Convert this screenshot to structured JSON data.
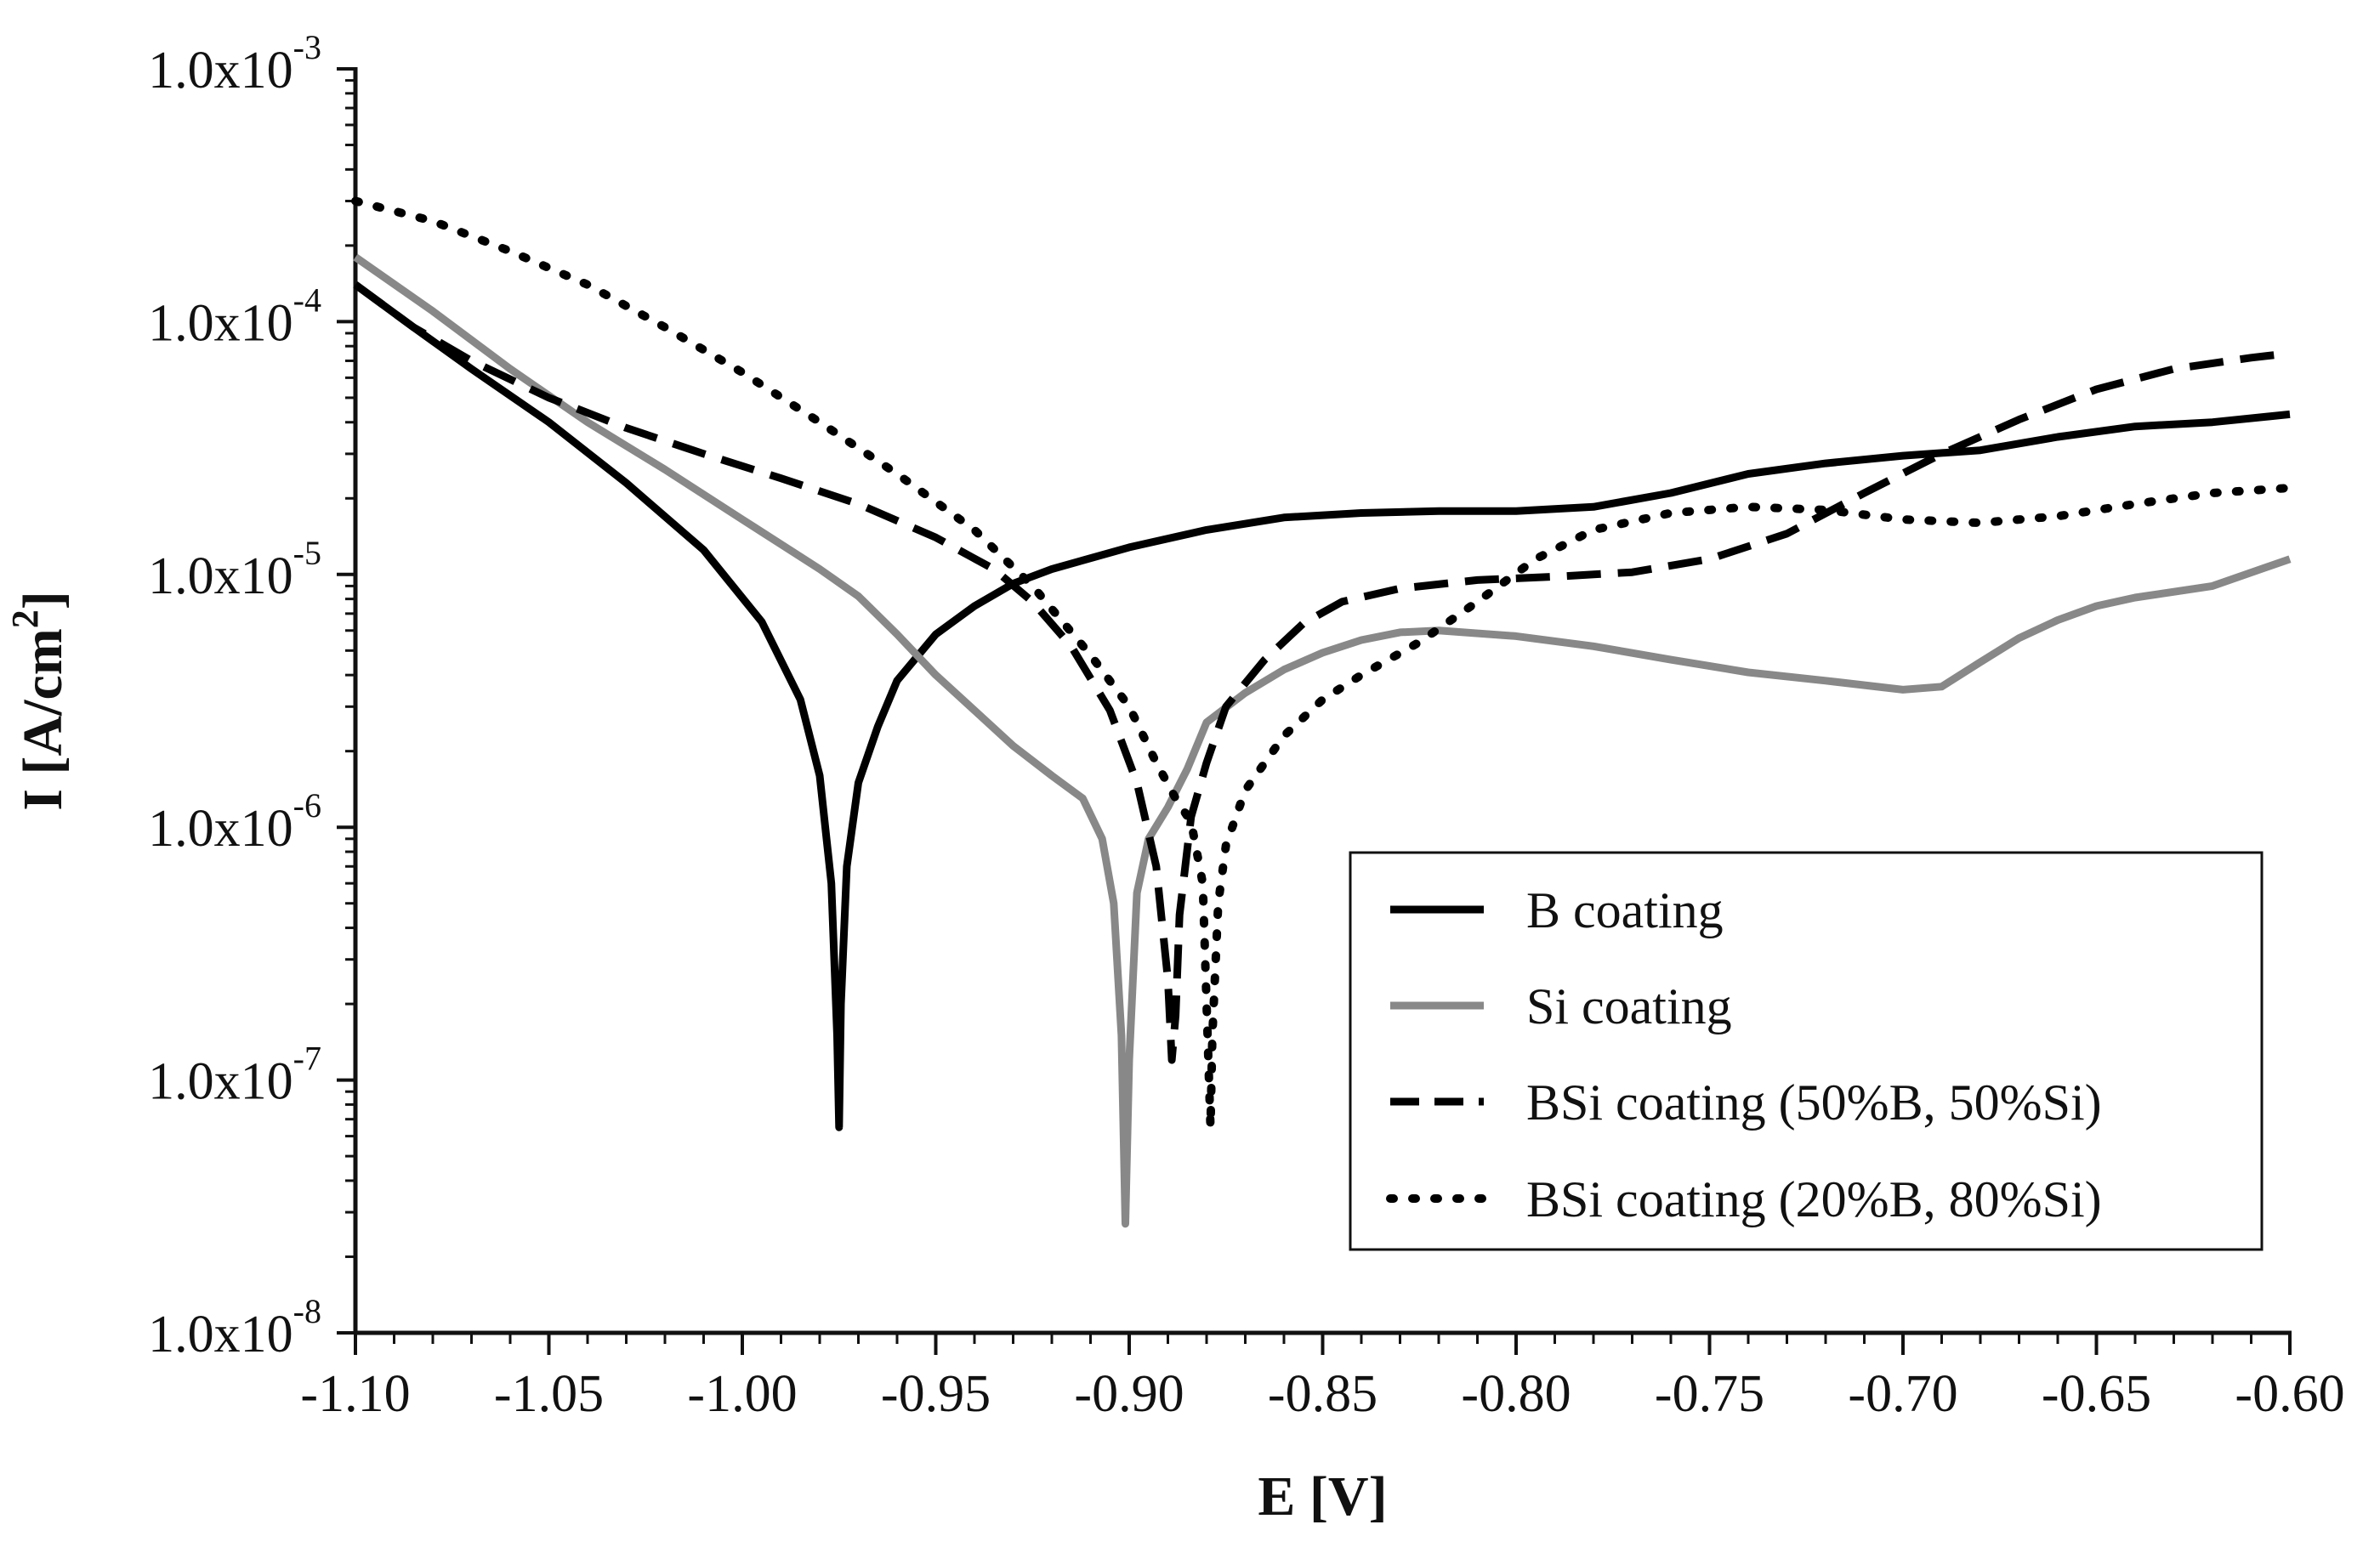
{
  "chart_data": {
    "type": "line",
    "title": "",
    "xlabel": "E [V]",
    "ylabel_main": "I [A/cm",
    "ylabel_sup": "2",
    "ylabel_close": "]",
    "xlim": [
      -1.1,
      -0.6
    ],
    "ylim": [
      1e-08,
      0.001
    ],
    "yscale": "log",
    "legend_position": "lower-right",
    "xtick_labels": [
      "-1.10",
      "-1.05",
      "-1.00",
      "-0.95",
      "-0.90",
      "-0.85",
      "-0.80",
      "-0.75",
      "-0.70",
      "-0.65",
      "-0.60"
    ],
    "ytick_labels": [
      {
        "base": "1.0x10",
        "exp": "-8",
        "value": 1e-08
      },
      {
        "base": "1.0x10",
        "exp": "-7",
        "value": 1e-07
      },
      {
        "base": "1.0x10",
        "exp": "-6",
        "value": 1e-06
      },
      {
        "base": "1.0x10",
        "exp": "-5",
        "value": 1e-05
      },
      {
        "base": "1.0x10",
        "exp": "-4",
        "value": 0.0001
      },
      {
        "base": "1.0x10",
        "exp": "-3",
        "value": 0.001
      }
    ],
    "series": [
      {
        "name": "B coating",
        "color": "#000000",
        "dash": "solid",
        "points": [
          [
            -1.1,
            0.00014
          ],
          [
            -1.085,
            9.5e-05
          ],
          [
            -1.07,
            6.5e-05
          ],
          [
            -1.05,
            4e-05
          ],
          [
            -1.03,
            2.3e-05
          ],
          [
            -1.01,
            1.25e-05
          ],
          [
            -0.995,
            6.5e-06
          ],
          [
            -0.985,
            3.2e-06
          ],
          [
            -0.98,
            1.6e-06
          ],
          [
            -0.977,
            6e-07
          ],
          [
            -0.9755,
            1.5e-07
          ],
          [
            -0.975,
            6.5e-08
          ],
          [
            -0.9745,
            2e-07
          ],
          [
            -0.973,
            7e-07
          ],
          [
            -0.97,
            1.5e-06
          ],
          [
            -0.965,
            2.5e-06
          ],
          [
            -0.96,
            3.8e-06
          ],
          [
            -0.95,
            5.8e-06
          ],
          [
            -0.94,
            7.5e-06
          ],
          [
            -0.93,
            9.2e-06
          ],
          [
            -0.92,
            1.05e-05
          ],
          [
            -0.9,
            1.28e-05
          ],
          [
            -0.88,
            1.5e-05
          ],
          [
            -0.86,
            1.68e-05
          ],
          [
            -0.84,
            1.75e-05
          ],
          [
            -0.82,
            1.78e-05
          ],
          [
            -0.8,
            1.78e-05
          ],
          [
            -0.78,
            1.85e-05
          ],
          [
            -0.76,
            2.1e-05
          ],
          [
            -0.74,
            2.5e-05
          ],
          [
            -0.72,
            2.75e-05
          ],
          [
            -0.7,
            2.95e-05
          ],
          [
            -0.68,
            3.1e-05
          ],
          [
            -0.66,
            3.5e-05
          ],
          [
            -0.64,
            3.85e-05
          ],
          [
            -0.62,
            4e-05
          ],
          [
            -0.6,
            4.3e-05
          ]
        ]
      },
      {
        "name": "Si coating",
        "color": "#888888",
        "dash": "solid",
        "points": [
          [
            -1.1,
            0.00018
          ],
          [
            -1.08,
            0.00011
          ],
          [
            -1.06,
            6.5e-05
          ],
          [
            -1.04,
            4e-05
          ],
          [
            -1.02,
            2.6e-05
          ],
          [
            -1.0,
            1.65e-05
          ],
          [
            -0.98,
            1.05e-05
          ],
          [
            -0.97,
            8.2e-06
          ],
          [
            -0.96,
            5.8e-06
          ],
          [
            -0.95,
            4e-06
          ],
          [
            -0.94,
            2.9e-06
          ],
          [
            -0.93,
            2.1e-06
          ],
          [
            -0.92,
            1.6e-06
          ],
          [
            -0.912,
            1.3e-06
          ],
          [
            -0.907,
            9e-07
          ],
          [
            -0.904,
            5e-07
          ],
          [
            -0.902,
            1.5e-07
          ],
          [
            -0.901,
            2.7e-08
          ],
          [
            -0.9,
            1.2e-07
          ],
          [
            -0.898,
            5.5e-07
          ],
          [
            -0.895,
            9e-07
          ],
          [
            -0.89,
            1.2e-06
          ],
          [
            -0.885,
            1.7e-06
          ],
          [
            -0.88,
            2.6e-06
          ],
          [
            -0.87,
            3.4e-06
          ],
          [
            -0.86,
            4.2e-06
          ],
          [
            -0.85,
            4.9e-06
          ],
          [
            -0.84,
            5.5e-06
          ],
          [
            -0.83,
            5.9e-06
          ],
          [
            -0.82,
            6e-06
          ],
          [
            -0.8,
            5.7e-06
          ],
          [
            -0.78,
            5.2e-06
          ],
          [
            -0.76,
            4.6e-06
          ],
          [
            -0.74,
            4.1e-06
          ],
          [
            -0.72,
            3.8e-06
          ],
          [
            -0.7,
            3.5e-06
          ],
          [
            -0.69,
            3.6e-06
          ],
          [
            -0.68,
            4.5e-06
          ],
          [
            -0.67,
            5.6e-06
          ],
          [
            -0.66,
            6.6e-06
          ],
          [
            -0.65,
            7.5e-06
          ],
          [
            -0.64,
            8.1e-06
          ],
          [
            -0.62,
            9e-06
          ],
          [
            -0.6,
            1.15e-05
          ]
        ]
      },
      {
        "name": "BSi coating (50%B, 50%Si)",
        "color": "#000000",
        "dash": "dashed",
        "points": [
          [
            -1.1,
            0.00014
          ],
          [
            -1.085,
            9.5e-05
          ],
          [
            -1.07,
            7e-05
          ],
          [
            -1.05,
            5e-05
          ],
          [
            -1.03,
            3.8e-05
          ],
          [
            -1.01,
            3e-05
          ],
          [
            -0.99,
            2.4e-05
          ],
          [
            -0.97,
            1.9e-05
          ],
          [
            -0.95,
            1.4e-05
          ],
          [
            -0.935,
            1.05e-05
          ],
          [
            -0.925,
            7.8e-06
          ],
          [
            -0.915,
            5.2e-06
          ],
          [
            -0.905,
            2.9e-06
          ],
          [
            -0.898,
            1.5e-06
          ],
          [
            -0.893,
            7e-07
          ],
          [
            -0.89,
            2.5e-07
          ],
          [
            -0.889,
            1.2e-07
          ],
          [
            -0.888,
            1.8e-07
          ],
          [
            -0.887,
            4.5e-07
          ],
          [
            -0.884,
            1.1e-06
          ],
          [
            -0.88,
            1.8e-06
          ],
          [
            -0.875,
            3e-06
          ],
          [
            -0.865,
            4.6e-06
          ],
          [
            -0.855,
            6.4e-06
          ],
          [
            -0.845,
            7.8e-06
          ],
          [
            -0.83,
            8.8e-06
          ],
          [
            -0.81,
            9.5e-06
          ],
          [
            -0.79,
            9.8e-06
          ],
          [
            -0.77,
            1.02e-05
          ],
          [
            -0.75,
            1.15e-05
          ],
          [
            -0.73,
            1.45e-05
          ],
          [
            -0.71,
            2.1e-05
          ],
          [
            -0.69,
            3e-05
          ],
          [
            -0.67,
            4.1e-05
          ],
          [
            -0.65,
            5.4e-05
          ],
          [
            -0.63,
            6.5e-05
          ],
          [
            -0.61,
            7.2e-05
          ],
          [
            -0.6,
            7.5e-05
          ]
        ]
      },
      {
        "name": "BSi coating (20%B, 80%Si)",
        "color": "#000000",
        "dash": "dotted",
        "points": [
          [
            -1.1,
            0.0003
          ],
          [
            -1.08,
            0.00025
          ],
          [
            -1.06,
            0.00019
          ],
          [
            -1.04,
            0.00014
          ],
          [
            -1.02,
            9.5e-05
          ],
          [
            -1.0,
            6.3e-05
          ],
          [
            -0.98,
            4e-05
          ],
          [
            -0.96,
            2.5e-05
          ],
          [
            -0.94,
            1.5e-05
          ],
          [
            -0.925,
            9e-06
          ],
          [
            -0.91,
            4.8e-06
          ],
          [
            -0.9,
            3e-06
          ],
          [
            -0.893,
            1.8e-06
          ],
          [
            -0.888,
            1.3e-06
          ],
          [
            -0.884,
            1.05e-06
          ],
          [
            -0.881,
            6e-07
          ],
          [
            -0.88,
            2e-07
          ],
          [
            -0.879,
            6.5e-08
          ],
          [
            -0.8785,
            1.5e-07
          ],
          [
            -0.877,
            5e-07
          ],
          [
            -0.875,
            8.5e-07
          ],
          [
            -0.87,
            1.4e-06
          ],
          [
            -0.86,
            2.3e-06
          ],
          [
            -0.85,
            3.2e-06
          ],
          [
            -0.84,
            4e-06
          ],
          [
            -0.825,
            5.4e-06
          ],
          [
            -0.81,
            7.8e-06
          ],
          [
            -0.795,
            1.15e-05
          ],
          [
            -0.78,
            1.5e-05
          ],
          [
            -0.76,
            1.75e-05
          ],
          [
            -0.74,
            1.85e-05
          ],
          [
            -0.72,
            1.8e-05
          ],
          [
            -0.7,
            1.65e-05
          ],
          [
            -0.68,
            1.6e-05
          ],
          [
            -0.66,
            1.7e-05
          ],
          [
            -0.64,
            1.9e-05
          ],
          [
            -0.62,
            2.1e-05
          ],
          [
            -0.6,
            2.2e-05
          ]
        ]
      }
    ]
  }
}
